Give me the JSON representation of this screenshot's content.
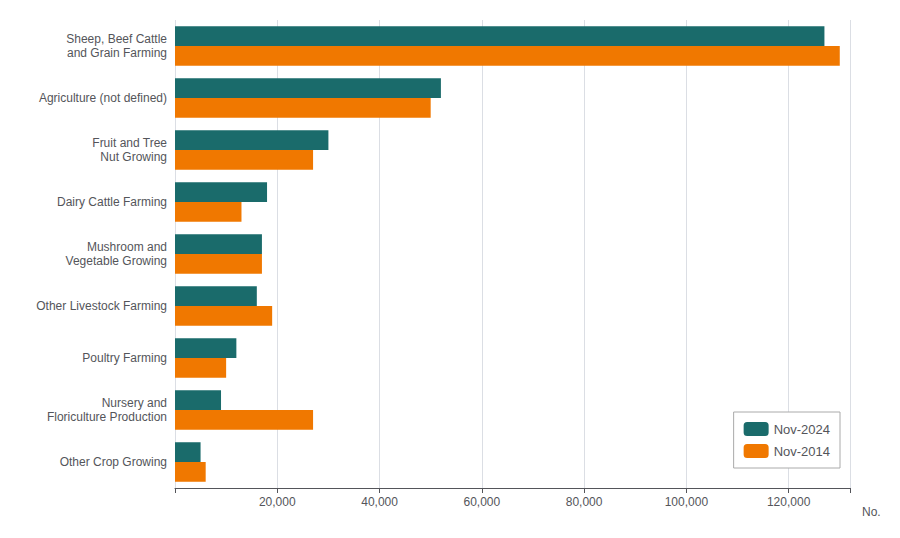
{
  "chart_data": {
    "type": "bar",
    "orientation": "horizontal",
    "categories": [
      "Sheep, Beef Cattle\nand Grain Farming",
      "Agriculture (not defined)",
      "Fruit and Tree\nNut Growing",
      "Dairy Cattle Farming",
      "Mushroom and\nVegetable Growing",
      "Other Livestock Farming",
      "Poultry Farming",
      "Nursery and\nFloriculture Production",
      "Other Crop Growing"
    ],
    "series": [
      {
        "name": "Nov-2024",
        "color": "#1a6b6b",
        "values": [
          127000,
          52000,
          30000,
          18000,
          17000,
          16000,
          12000,
          9000,
          5000
        ]
      },
      {
        "name": "Nov-2014",
        "color": "#f07800",
        "values": [
          130000,
          50000,
          27000,
          13000,
          17000,
          19000,
          10000,
          27000,
          6000
        ]
      }
    ],
    "x_label": "No.",
    "xlim": [
      0,
      132000
    ],
    "xticks": [
      {
        "value": 20000,
        "label": "20,000"
      },
      {
        "value": 40000,
        "label": "40,000"
      },
      {
        "value": 60000,
        "label": "60,000"
      },
      {
        "value": 80000,
        "label": "80,000"
      },
      {
        "value": 100000,
        "label": "100,000"
      },
      {
        "value": 120000,
        "label": "120,000"
      }
    ],
    "grid": true,
    "legend": "lower right"
  }
}
